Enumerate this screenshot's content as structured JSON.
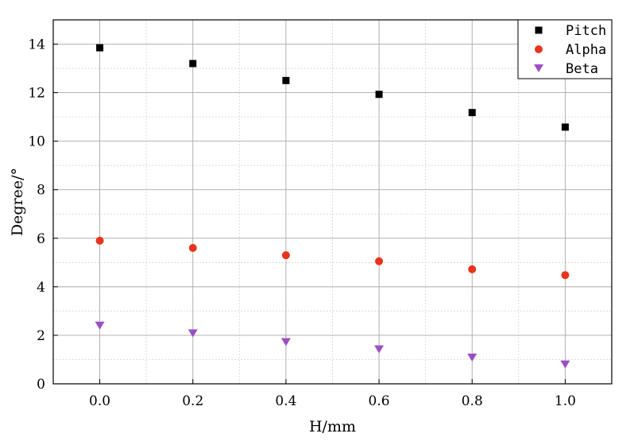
{
  "chart_data": {
    "type": "scatter",
    "xlabel": "H/mm",
    "ylabel": "Degree/°",
    "xlim": [
      -0.1,
      1.1
    ],
    "ylim": [
      0,
      15
    ],
    "x_ticks": [
      0.0,
      0.2,
      0.4,
      0.6,
      0.8,
      1.0
    ],
    "x_tick_labels": [
      "0.0",
      "0.2",
      "0.4",
      "0.6",
      "0.8",
      "1.0"
    ],
    "y_ticks": [
      0,
      2,
      4,
      6,
      8,
      10,
      12,
      14
    ],
    "y_tick_labels": [
      "0",
      "2",
      "4",
      "6",
      "8",
      "10",
      "12",
      "14"
    ],
    "grid": true,
    "legend_position": "top-right",
    "series": [
      {
        "name": "Pitch",
        "marker": "square",
        "color": "#000000",
        "x": [
          0.0,
          0.2,
          0.4,
          0.6,
          0.8,
          1.0
        ],
        "y": [
          13.85,
          13.2,
          12.5,
          11.93,
          11.18,
          10.58
        ]
      },
      {
        "name": "Alpha",
        "marker": "circle",
        "color": "#e8341c",
        "x": [
          0.0,
          0.2,
          0.4,
          0.6,
          0.8,
          1.0
        ],
        "y": [
          5.9,
          5.6,
          5.3,
          5.05,
          4.72,
          4.48
        ]
      },
      {
        "name": "Beta",
        "marker": "triangle-down",
        "color": "#9b4fc4",
        "x": [
          0.0,
          0.2,
          0.4,
          0.6,
          0.8,
          1.0
        ],
        "y": [
          2.4,
          2.08,
          1.72,
          1.42,
          1.08,
          0.8
        ]
      }
    ]
  }
}
